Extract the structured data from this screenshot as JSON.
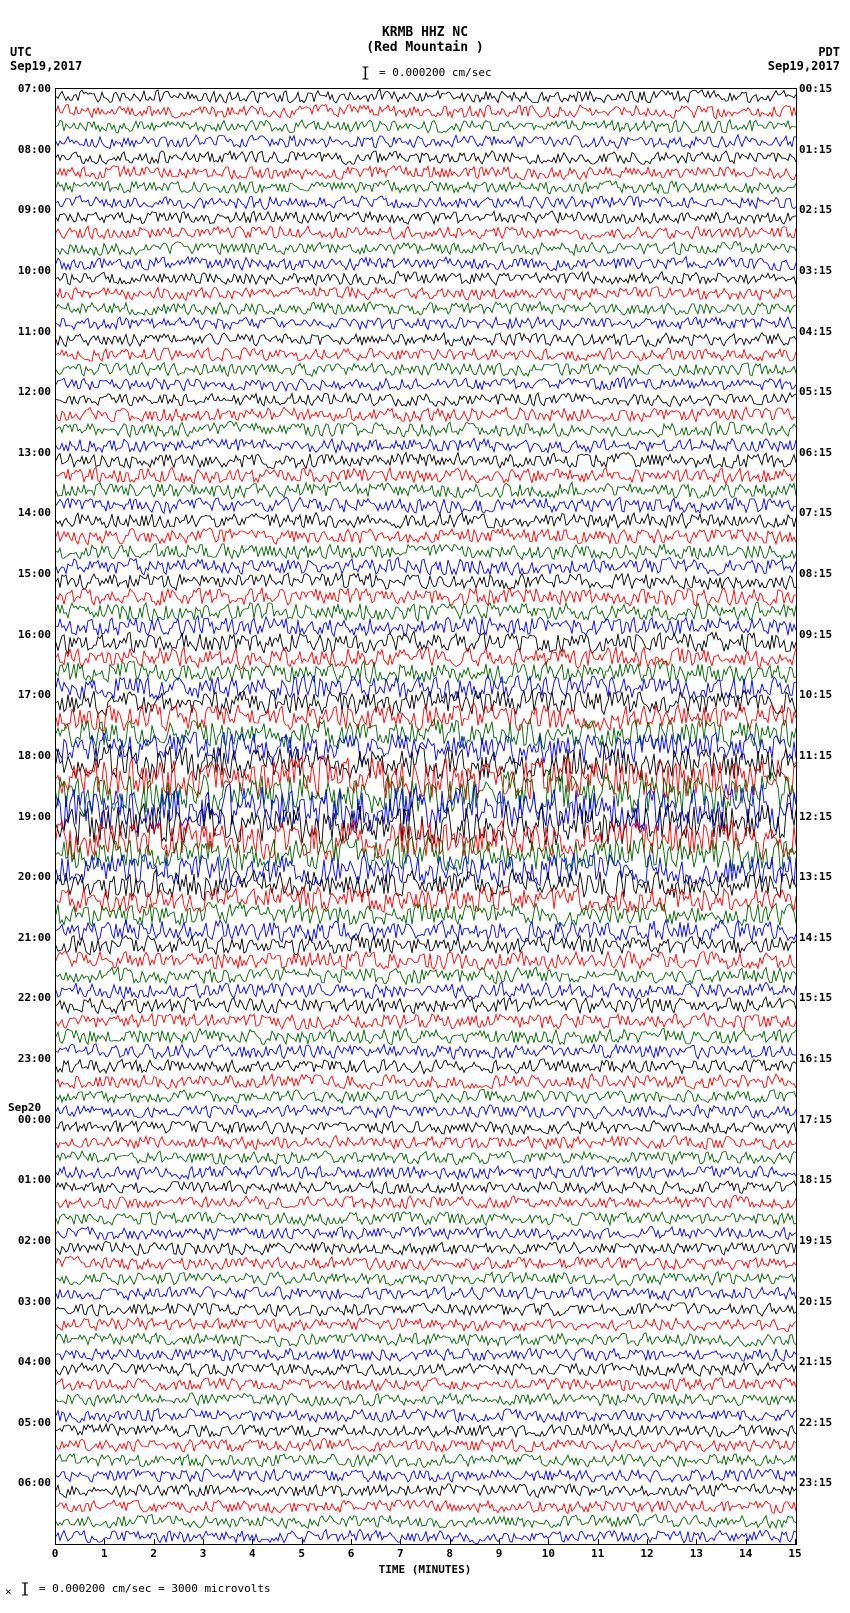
{
  "header": {
    "station_code": "KRMB HHZ NC",
    "station_name": "(Red Mountain )",
    "scale_text": "= 0.000200 cm/sec"
  },
  "timezones": {
    "left_tz": "UTC",
    "left_date": "Sep19,2017",
    "right_tz": "PDT",
    "right_date": "Sep19,2017"
  },
  "day_change_label": "Sep20",
  "day_change_row": 68,
  "x_axis": {
    "label": "TIME (MINUTES)",
    "ticks": [
      0,
      1,
      2,
      3,
      4,
      5,
      6,
      7,
      8,
      9,
      10,
      11,
      12,
      13,
      14,
      15
    ],
    "min": 0,
    "max": 15
  },
  "footer_text": "= 0.000200 cm/sec =   3000 microvolts",
  "helicorder": {
    "type": "helicorder",
    "n_rows": 96,
    "row_minutes": 15,
    "colors": [
      "#000000",
      "#ff0000",
      "#006400",
      "#0000ff"
    ],
    "background_color": "#ffffff",
    "trace_base_amplitude": 8,
    "amplitude_multipliers": [
      1.0,
      1.0,
      1.0,
      1.0,
      1.0,
      1.0,
      1.0,
      1.0,
      1.0,
      1.0,
      1.0,
      1.0,
      1.0,
      1.0,
      1.0,
      1.0,
      1.0,
      1.0,
      1.0,
      1.0,
      1.0,
      1.1,
      1.1,
      1.1,
      1.2,
      1.2,
      1.2,
      1.2,
      1.2,
      1.2,
      1.2,
      1.3,
      1.3,
      1.4,
      1.4,
      1.5,
      1.6,
      1.6,
      1.7,
      1.8,
      1.9,
      2.0,
      2.2,
      2.4,
      2.8,
      3.2,
      3.4,
      3.5,
      3.2,
      3.0,
      2.6,
      2.4,
      2.2,
      2.0,
      1.8,
      1.6,
      1.5,
      1.4,
      1.3,
      1.2,
      1.2,
      1.2,
      1.2,
      1.1,
      1.1,
      1.1,
      1.0,
      1.0,
      1.0,
      1.0,
      1.0,
      1.0,
      1.0,
      1.0,
      1.0,
      1.0,
      1.0,
      1.0,
      1.0,
      1.0,
      1.0,
      1.0,
      1.0,
      1.0,
      1.0,
      1.0,
      1.0,
      1.0,
      1.0,
      1.0,
      1.0,
      1.0,
      1.0,
      1.0,
      1.0,
      1.0
    ],
    "utc_hour_labels": [
      {
        "row": 0,
        "text": "07:00"
      },
      {
        "row": 4,
        "text": "08:00"
      },
      {
        "row": 8,
        "text": "09:00"
      },
      {
        "row": 12,
        "text": "10:00"
      },
      {
        "row": 16,
        "text": "11:00"
      },
      {
        "row": 20,
        "text": "12:00"
      },
      {
        "row": 24,
        "text": "13:00"
      },
      {
        "row": 28,
        "text": "14:00"
      },
      {
        "row": 32,
        "text": "15:00"
      },
      {
        "row": 36,
        "text": "16:00"
      },
      {
        "row": 40,
        "text": "17:00"
      },
      {
        "row": 44,
        "text": "18:00"
      },
      {
        "row": 48,
        "text": "19:00"
      },
      {
        "row": 52,
        "text": "20:00"
      },
      {
        "row": 56,
        "text": "21:00"
      },
      {
        "row": 60,
        "text": "22:00"
      },
      {
        "row": 64,
        "text": "23:00"
      },
      {
        "row": 68,
        "text": "00:00"
      },
      {
        "row": 72,
        "text": "01:00"
      },
      {
        "row": 76,
        "text": "02:00"
      },
      {
        "row": 80,
        "text": "03:00"
      },
      {
        "row": 84,
        "text": "04:00"
      },
      {
        "row": 88,
        "text": "05:00"
      },
      {
        "row": 92,
        "text": "06:00"
      }
    ],
    "pdt_hour_labels": [
      {
        "row": 0,
        "text": "00:15"
      },
      {
        "row": 4,
        "text": "01:15"
      },
      {
        "row": 8,
        "text": "02:15"
      },
      {
        "row": 12,
        "text": "03:15"
      },
      {
        "row": 16,
        "text": "04:15"
      },
      {
        "row": 20,
        "text": "05:15"
      },
      {
        "row": 24,
        "text": "06:15"
      },
      {
        "row": 28,
        "text": "07:15"
      },
      {
        "row": 32,
        "text": "08:15"
      },
      {
        "row": 36,
        "text": "09:15"
      },
      {
        "row": 40,
        "text": "10:15"
      },
      {
        "row": 44,
        "text": "11:15"
      },
      {
        "row": 48,
        "text": "12:15"
      },
      {
        "row": 52,
        "text": "13:15"
      },
      {
        "row": 56,
        "text": "14:15"
      },
      {
        "row": 60,
        "text": "15:15"
      },
      {
        "row": 64,
        "text": "16:15"
      },
      {
        "row": 68,
        "text": "17:15"
      },
      {
        "row": 72,
        "text": "18:15"
      },
      {
        "row": 76,
        "text": "19:15"
      },
      {
        "row": 80,
        "text": "20:15"
      },
      {
        "row": 84,
        "text": "21:15"
      },
      {
        "row": 88,
        "text": "22:15"
      },
      {
        "row": 92,
        "text": "23:15"
      }
    ]
  }
}
